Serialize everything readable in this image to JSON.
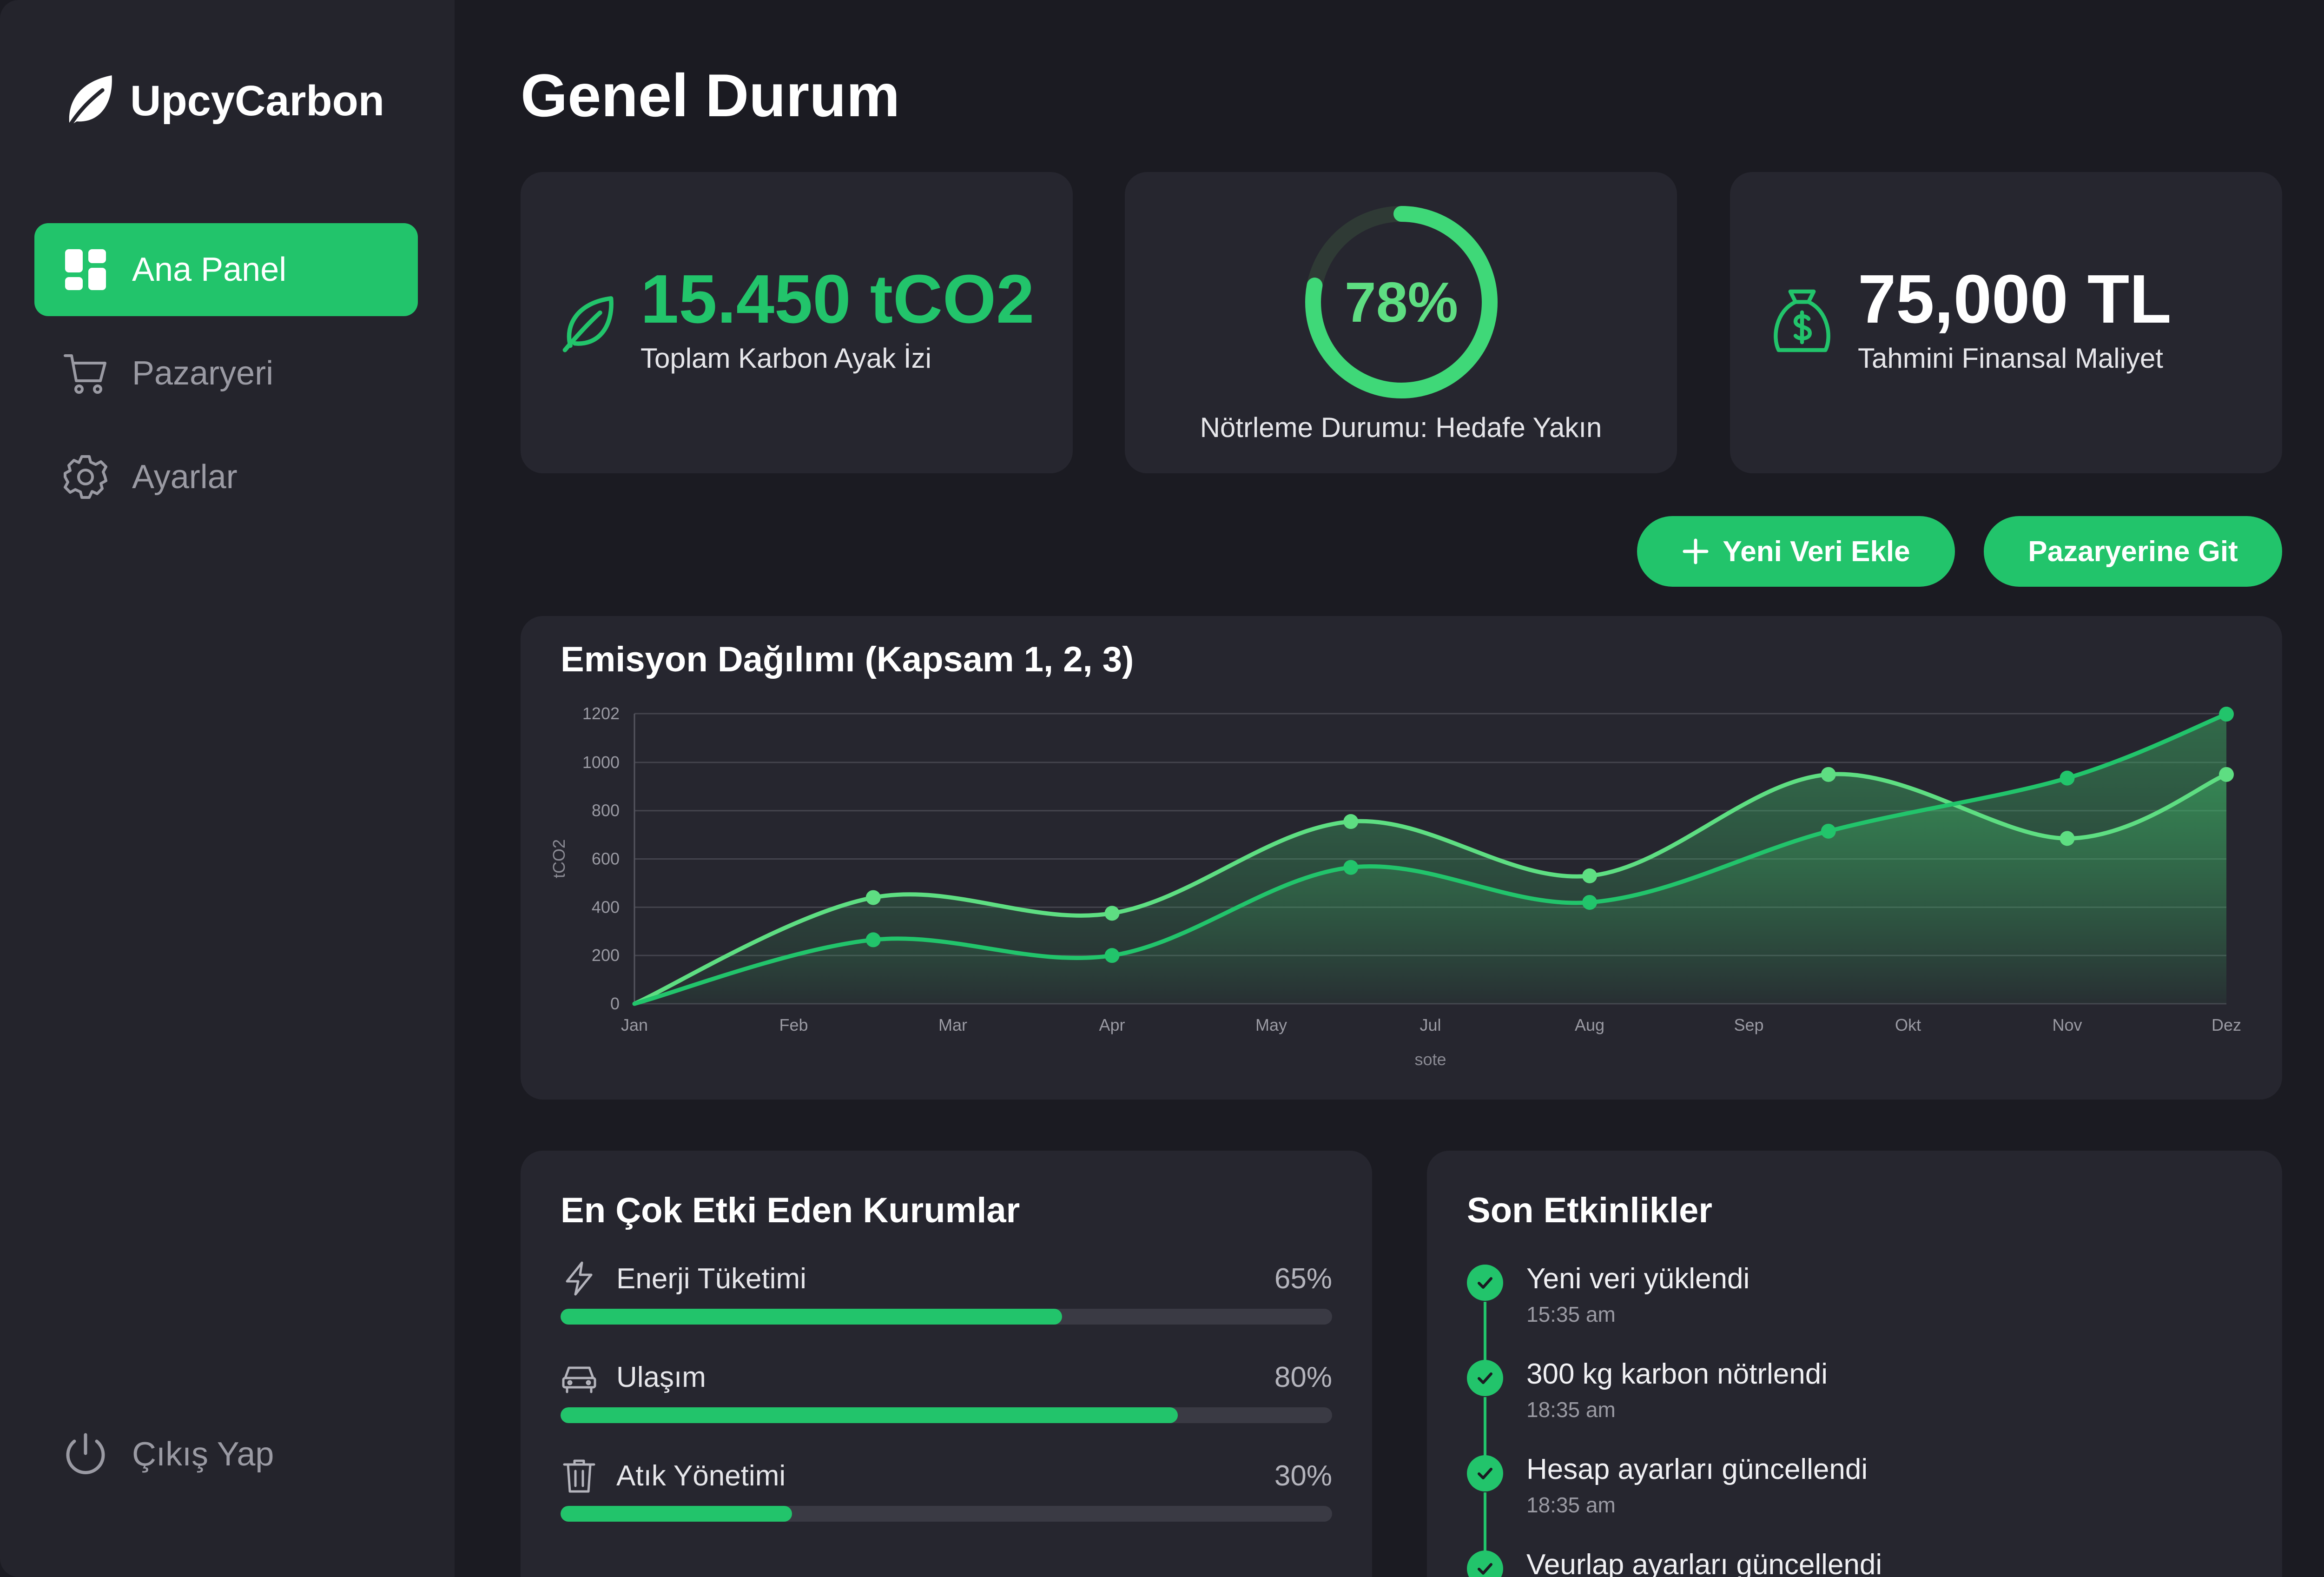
{
  "app": {
    "name": "UpcyCarbon"
  },
  "sidebar": {
    "items": [
      {
        "label": "Ana Panel",
        "icon": "dashboard-icon",
        "active": true
      },
      {
        "label": "Pazaryeri",
        "icon": "cart-icon",
        "active": false
      },
      {
        "label": "Ayarlar",
        "icon": "gear-icon",
        "active": false
      }
    ],
    "logout": {
      "label": "Çıkış Yap",
      "icon": "power-icon"
    }
  },
  "page": {
    "title": "Genel Durum"
  },
  "kpis": {
    "footprint": {
      "value": "15.450 tCO2",
      "label": "Toplam Karbon Ayak İzi",
      "icon": "leaf-icon"
    },
    "neutral": {
      "value": "78%",
      "progress": 0.78,
      "label": "Nötrleme Durumu: Hedafe Yakın"
    },
    "cost": {
      "value": "75,000 TL",
      "label": "Tahmini Finansal Maliyet",
      "icon": "money-bag-icon"
    }
  },
  "actions": {
    "add_label": "Yeni Veri Ekle",
    "market_label": "Pazaryerine Git"
  },
  "chart": {
    "title": "Emisyon Dağılımı (Kapsam 1, 2, 3)"
  },
  "chart_data": {
    "type": "area",
    "title": "Emisyon Dağılımı (Kapsam 1, 2, 3)",
    "xlabel": "sote",
    "ylabel": "tCO2",
    "y_ticks": [
      "0",
      "200",
      "400",
      "600",
      "800",
      "1000",
      "1202"
    ],
    "ylim": [
      0,
      1202
    ],
    "categories": [
      "Jan",
      "Feb",
      "Mar",
      "Apr",
      "May",
      "Jul",
      "Aug",
      "Sep",
      "Okt",
      "Nov",
      "Dez"
    ],
    "series": [
      {
        "x": [
          0,
          1.5,
          3,
          4.5,
          6,
          7.5,
          9,
          10
        ],
        "values": [
          0,
          440,
          375,
          755,
          530,
          950,
          685,
          950
        ],
        "color": "#5ede82"
      },
      {
        "x": [
          0,
          1.5,
          3,
          4.5,
          6,
          7.5,
          9,
          10
        ],
        "values": [
          0,
          265,
          200,
          565,
          420,
          715,
          935,
          1200
        ],
        "color": "#22c46b"
      }
    ],
    "grid": true
  },
  "top_orgs": {
    "title": "En Çok Etki Eden Kurumlar",
    "items": [
      {
        "label": "Enerji Tüketimi",
        "pct_label": "65%",
        "value": 0.65,
        "icon": "lightning-icon"
      },
      {
        "label": "Ulaşım",
        "pct_label": "80%",
        "value": 0.8,
        "icon": "car-icon"
      },
      {
        "label": "Atık Yönetimi",
        "pct_label": "30%",
        "value": 0.3,
        "icon": "trash-icon"
      }
    ]
  },
  "activity": {
    "title": "Son Etkinlikler",
    "items": [
      {
        "title": "Yeni veri yüklendi",
        "time": "15:35 am"
      },
      {
        "title": "300 kg karbon nötrlendi",
        "time": "18:35 am"
      },
      {
        "title": "Hesap ayarları güncellendi",
        "time": "18:35 am"
      },
      {
        "title": "Veurlap ayarları güncellendi",
        "time": ""
      }
    ]
  }
}
